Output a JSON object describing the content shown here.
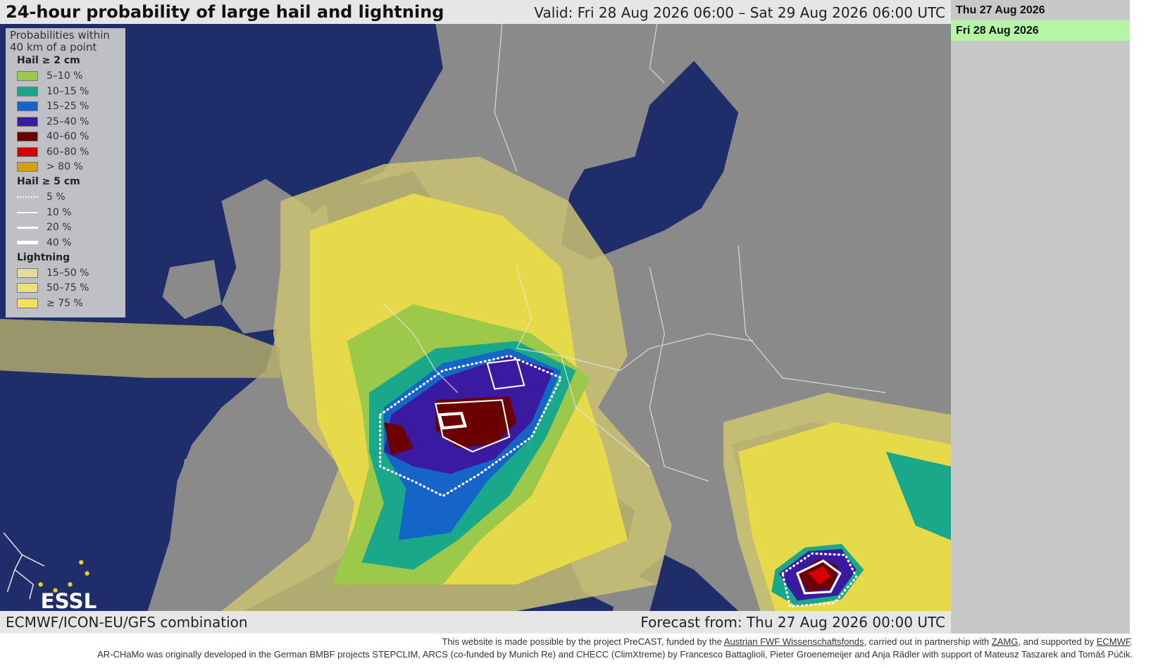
{
  "header": {
    "title": "24-hour probability of large hail and lightning",
    "valid": "Valid: Fri 28 Aug 2026 06:00 – Sat 29 Aug 2026 06:00 UTC"
  },
  "dates": [
    "Thu 27 Aug 2026",
    "Fri 28 Aug 2026"
  ],
  "legend": {
    "heading": [
      "Probabilities within",
      "40 km of a point"
    ],
    "sections": [
      {
        "title": "Hail ≥ 2 cm",
        "items": [
          {
            "label": "5–10 %",
            "color": "#9dc94a"
          },
          {
            "label": "10–15 %",
            "color": "#19a88a"
          },
          {
            "label": "15–25 %",
            "color": "#1565c8"
          },
          {
            "label": "25–40 %",
            "color": "#3a1aa0"
          },
          {
            "label": "40–60 %",
            "color": "#6a0000"
          },
          {
            "label": "60–80 %",
            "color": "#d40000"
          },
          {
            "label": "> 80 %",
            "color": "#d4a010"
          }
        ]
      },
      {
        "title": "Hail ≥ 5 cm",
        "items": [
          {
            "label": "5 %",
            "line": {
              "style": "dotted",
              "width": 2
            }
          },
          {
            "label": "10 %",
            "line": {
              "style": "solid",
              "width": 2
            }
          },
          {
            "label": "20 %",
            "line": {
              "style": "solid",
              "width": 3
            }
          },
          {
            "label": "40 %",
            "line": {
              "style": "solid",
              "width": 5
            }
          }
        ]
      },
      {
        "title": "Lightning",
        "items": [
          {
            "label": "15–50 %",
            "color": "#e2dd9c"
          },
          {
            "label": "50–75 %",
            "color": "#ebe27a"
          },
          {
            "label": "≥ 75 %",
            "color": "#f2e35a"
          }
        ]
      }
    ]
  },
  "logo": "ESSL",
  "footer": {
    "model": "ECMWF/ICON-EU/GFS combination",
    "forecast": "Forecast from: Thu 27 Aug 2026 00:00 UTC"
  },
  "credits": [
    [
      {
        "text": "This website is made possible by the project PreCAST, funded by the "
      },
      {
        "link": "Austrian FWF Wissenschaftsfonds"
      },
      {
        "text": ", carried out in partnership with "
      },
      {
        "link": "ZAMG"
      },
      {
        "text": ", and supported by "
      },
      {
        "link": "ECMWF"
      },
      {
        "text": "."
      }
    ],
    [
      {
        "text": "AR-CHaMo was originally developed in the German BMBF projects STEPCLIM, ARCS (co-funded by Munich Re) and CHECC (ClimXtreme) by Francesco Battaglioli, Pieter Groenemeijer and Anja Rädler with support of Mateusz Taszarek and Tomáš Púčik."
      }
    ]
  ]
}
